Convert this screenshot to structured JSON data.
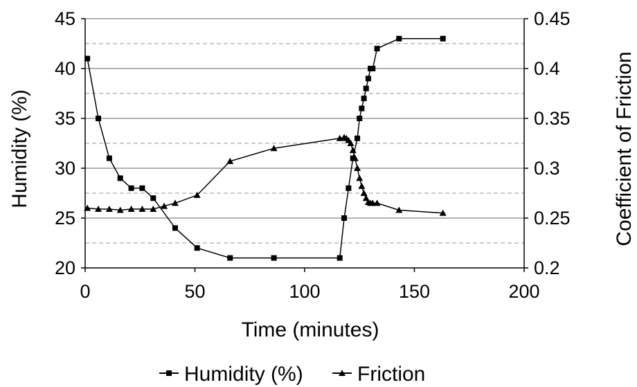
{
  "chart_data": {
    "type": "line",
    "xlabel": "Time (minutes)",
    "ylabel": "Humidity (%)",
    "y2label": "Coefficient of Friction",
    "xlim": [
      0,
      200
    ],
    "ylim": [
      20,
      45
    ],
    "y2lim": [
      0.2,
      0.45
    ],
    "xticks": [
      "0",
      "50",
      "100",
      "150",
      "200"
    ],
    "yticks": [
      "20",
      "25",
      "30",
      "35",
      "40",
      "45"
    ],
    "y2ticks": [
      "0.2",
      "0.25",
      "0.3",
      "0.35",
      "0.4",
      "0.45"
    ],
    "grid": "horizontal (solid at major ticks, dashed at half-steps)",
    "legend_position": "bottom",
    "series": [
      {
        "name": "Humidity (%)",
        "axis": "left",
        "marker": "square",
        "color": "#000000",
        "x": [
          1,
          6,
          11,
          16,
          21,
          26,
          31,
          41,
          51,
          66,
          86,
          116,
          118,
          120,
          122,
          124,
          125,
          126,
          127,
          128,
          129,
          130,
          131,
          133,
          143,
          163
        ],
        "y": [
          41,
          35,
          31,
          29,
          28,
          28,
          27,
          24,
          22,
          21,
          21,
          21,
          25,
          28,
          31,
          33,
          35,
          36,
          37,
          38,
          39,
          40,
          40,
          42,
          43,
          43
        ]
      },
      {
        "name": "Friction",
        "axis": "right",
        "marker": "triangle",
        "color": "#000000",
        "x": [
          1,
          6,
          11,
          16,
          21,
          26,
          31,
          36,
          41,
          51,
          66,
          86,
          116,
          118,
          119,
          120,
          121,
          122,
          123,
          124,
          125,
          126,
          127,
          128,
          129,
          130,
          131,
          133,
          143,
          163
        ],
        "y": [
          0.26,
          0.259,
          0.259,
          0.258,
          0.259,
          0.259,
          0.259,
          0.262,
          0.265,
          0.273,
          0.307,
          0.32,
          0.33,
          0.331,
          0.33,
          0.328,
          0.325,
          0.318,
          0.31,
          0.3,
          0.29,
          0.282,
          0.275,
          0.27,
          0.266,
          0.265,
          0.265,
          0.265,
          0.258,
          0.255
        ]
      }
    ]
  }
}
